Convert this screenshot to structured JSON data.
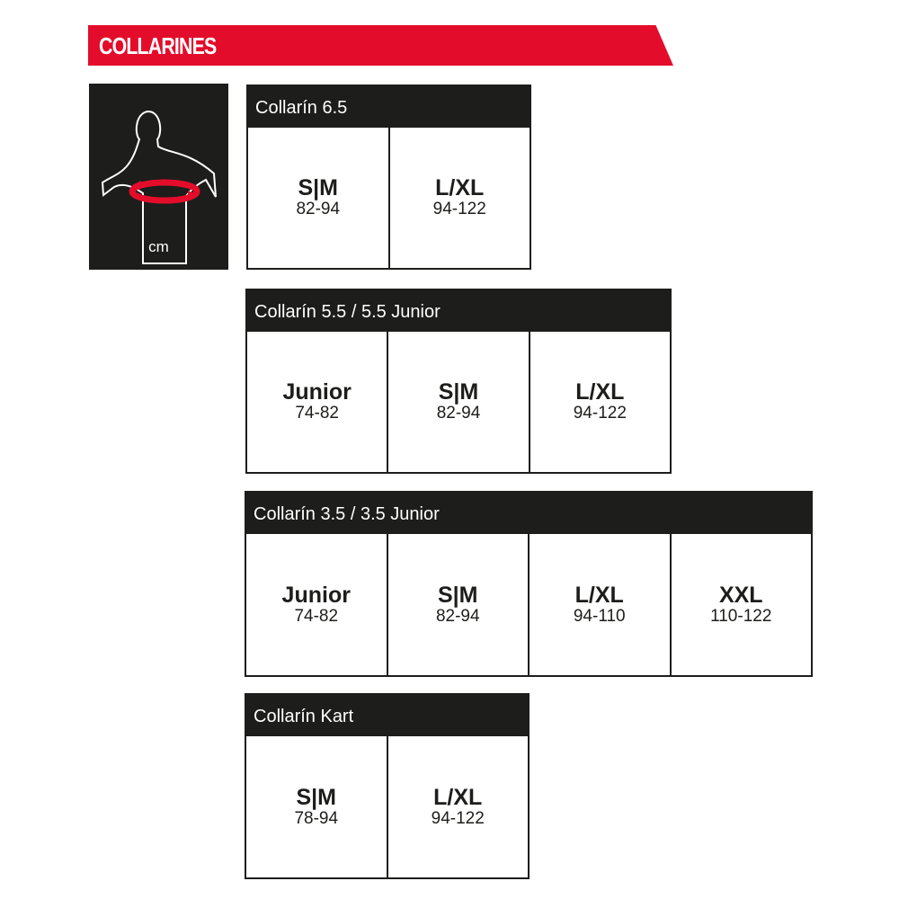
{
  "title": "COLLARINES",
  "measure_unit": "cm",
  "accent_color": "#e30d2b",
  "icon": "torso-chest-measurement-icon",
  "tables": [
    {
      "name": "Collarín 6.5",
      "sizes": [
        {
          "size": "S|M",
          "range": "82-94"
        },
        {
          "size": "L/XL",
          "range": "94-122"
        }
      ]
    },
    {
      "name": "Collarín 5.5 / 5.5 Junior",
      "sizes": [
        {
          "size": "Junior",
          "range": "74-82"
        },
        {
          "size": "S|M",
          "range": "82-94"
        },
        {
          "size": "L/XL",
          "range": "94-122"
        }
      ]
    },
    {
      "name": "Collarín 3.5 / 3.5 Junior",
      "sizes": [
        {
          "size": "Junior",
          "range": "74-82"
        },
        {
          "size": "S|M",
          "range": "82-94"
        },
        {
          "size": "L/XL",
          "range": "94-110"
        },
        {
          "size": "XXL",
          "range": "110-122"
        }
      ]
    },
    {
      "name": "Collarín Kart",
      "sizes": [
        {
          "size": "S|M",
          "range": "78-94"
        },
        {
          "size": "L/XL",
          "range": "94-122"
        }
      ]
    }
  ]
}
